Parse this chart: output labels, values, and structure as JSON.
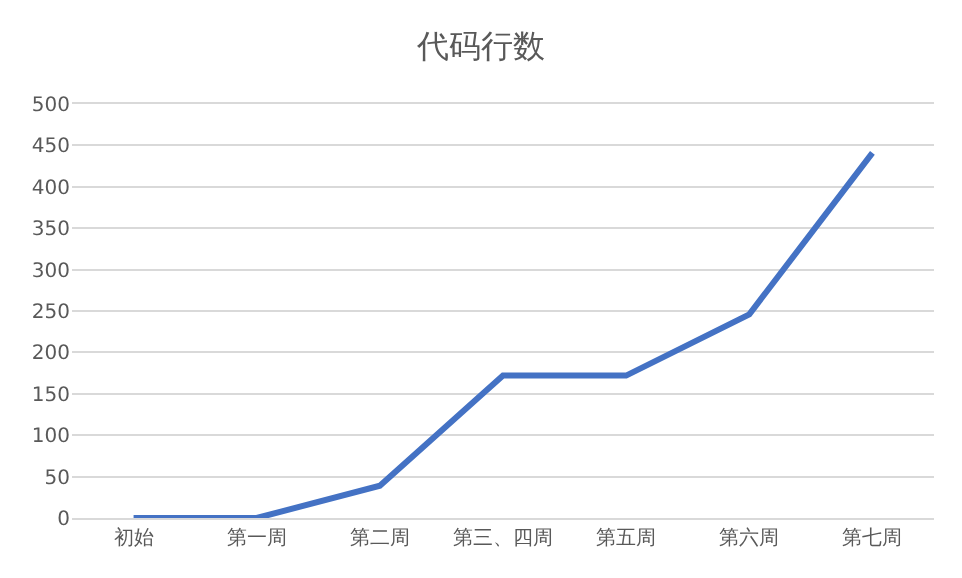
{
  "chart_data": {
    "type": "line",
    "title": "代码行数",
    "categories": [
      "初始",
      "第一周",
      "第二周",
      "第三、四周",
      "第五周",
      "第六周",
      "第七周"
    ],
    "series": [
      {
        "color": "#4472c4",
        "values": [
          0,
          0,
          39,
          172,
          172,
          246,
          441
        ]
      }
    ],
    "ylim": [
      0,
      500
    ],
    "yticks": [
      0,
      50,
      100,
      150,
      200,
      250,
      300,
      350,
      400,
      450,
      500
    ],
    "grid": "y",
    "marker": "none",
    "line_style": "solid"
  }
}
